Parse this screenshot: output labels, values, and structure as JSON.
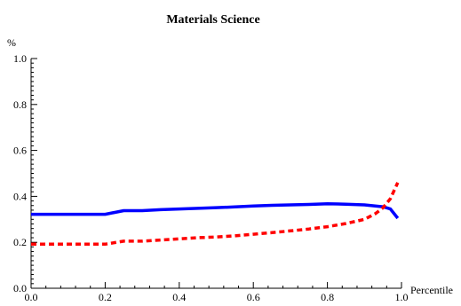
{
  "chart_data": {
    "type": "line",
    "title": "Materials Science",
    "xlabel": "Percentile",
    "ylabel": "%",
    "xlim": [
      0.0,
      1.0
    ],
    "ylim": [
      0.0,
      1.0
    ],
    "x_ticks": [
      "0.0",
      "0.2",
      "0.4",
      "0.6",
      "0.8",
      "1.0"
    ],
    "y_ticks": [
      "0.0",
      "0.2",
      "0.4",
      "0.6",
      "0.8",
      "1.0"
    ],
    "grid": false,
    "series": [
      {
        "color": "#0000ff",
        "style": "solid",
        "x": [
          0.0,
          0.05,
          0.1,
          0.15,
          0.2,
          0.25,
          0.3,
          0.35,
          0.4,
          0.45,
          0.5,
          0.55,
          0.6,
          0.65,
          0.7,
          0.75,
          0.8,
          0.85,
          0.9,
          0.95,
          0.97,
          0.99
        ],
        "y": [
          0.322,
          0.322,
          0.322,
          0.322,
          0.322,
          0.338,
          0.338,
          0.342,
          0.345,
          0.348,
          0.351,
          0.354,
          0.358,
          0.361,
          0.363,
          0.365,
          0.368,
          0.366,
          0.363,
          0.355,
          0.345,
          0.305
        ]
      },
      {
        "color": "#ff0000",
        "style": "dashed",
        "x": [
          0.0,
          0.05,
          0.1,
          0.15,
          0.2,
          0.25,
          0.3,
          0.35,
          0.4,
          0.45,
          0.5,
          0.55,
          0.6,
          0.65,
          0.7,
          0.75,
          0.8,
          0.85,
          0.9,
          0.93,
          0.95,
          0.97,
          0.99
        ],
        "y": [
          0.192,
          0.192,
          0.192,
          0.192,
          0.192,
          0.205,
          0.205,
          0.21,
          0.215,
          0.22,
          0.223,
          0.228,
          0.235,
          0.242,
          0.25,
          0.258,
          0.268,
          0.282,
          0.3,
          0.325,
          0.35,
          0.39,
          0.46
        ]
      }
    ]
  }
}
